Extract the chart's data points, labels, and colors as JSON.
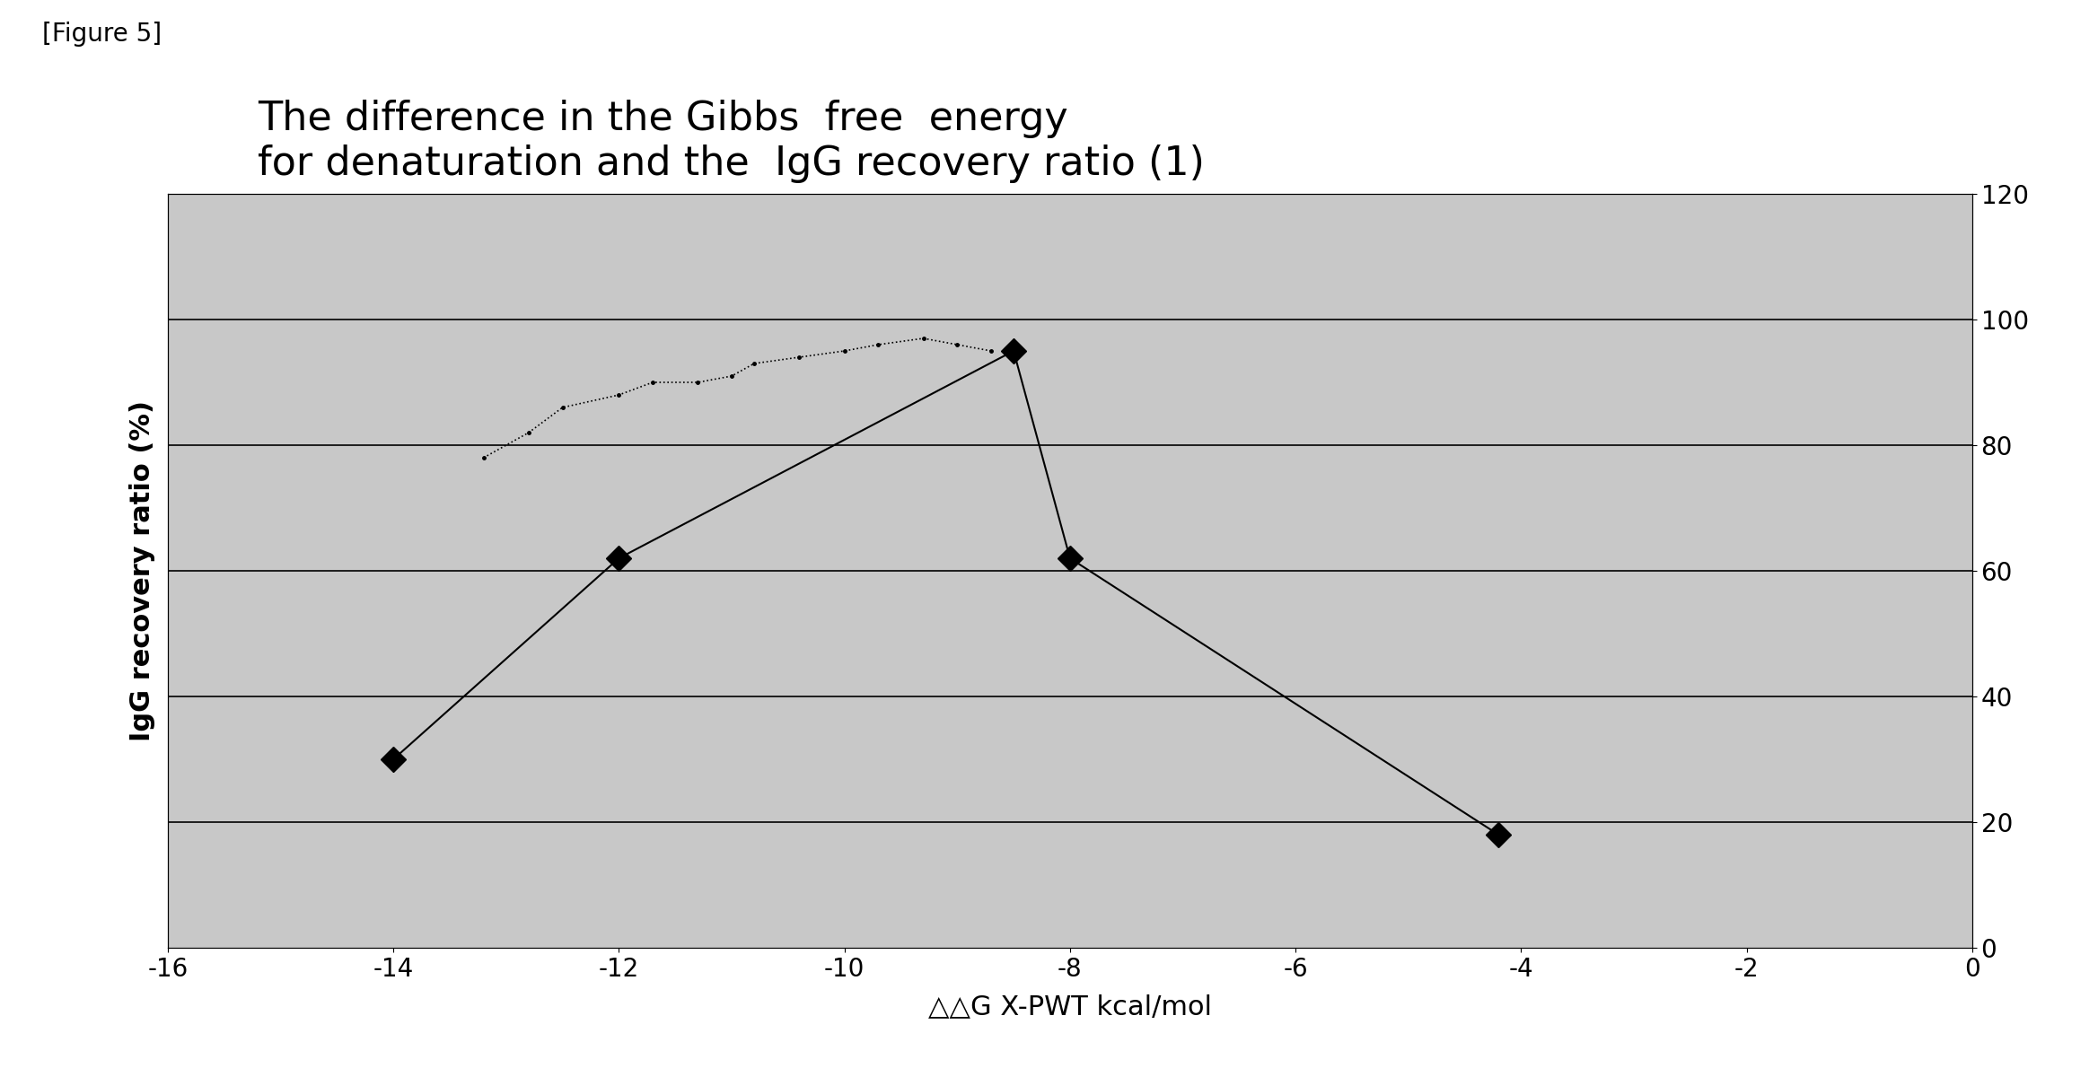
{
  "title_line1": "The difference in the Gibbs  free  energy",
  "title_line2": "for denaturation and the  IgG recovery ratio (1)",
  "xlabel": "△△G X-PWT kcal/mol",
  "ylabel": "IgG recovery ratio (%)",
  "figure_label": "[Figure 5]",
  "xlim": [
    -16,
    0
  ],
  "ylim_left": [
    0,
    120
  ],
  "ylim_right": [
    0,
    120
  ],
  "xticks": [
    -16,
    -14,
    -12,
    -10,
    -8,
    -6,
    -4,
    -2,
    0
  ],
  "yticks_right": [
    0,
    20,
    40,
    60,
    80,
    100,
    120
  ],
  "bg_color": "#c8c8c8",
  "solid_line_x": [
    -14.0,
    -12.0,
    -8.5,
    -8.0,
    -4.2
  ],
  "solid_line_y": [
    30,
    62,
    95,
    62,
    18
  ],
  "dotted_x": [
    -13.2,
    -12.8,
    -12.5,
    -12.0,
    -11.7,
    -11.3,
    -11.0,
    -10.8,
    -10.4,
    -10.0,
    -9.7,
    -9.3,
    -9.0,
    -8.7
  ],
  "dotted_y": [
    78,
    82,
    86,
    88,
    90,
    90,
    91,
    93,
    94,
    95,
    96,
    97,
    96,
    95
  ],
  "hline_y": [
    20,
    40,
    60,
    80,
    100
  ],
  "marker_size": 14,
  "line_width": 1.5,
  "title_fontsize": 32,
  "axis_label_fontsize": 22,
  "tick_fontsize": 20,
  "figure_label_fontsize": 20,
  "background_color": "#ffffff"
}
